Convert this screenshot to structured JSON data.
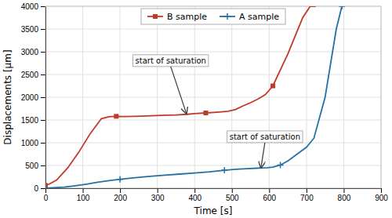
{
  "chart_data": {
    "type": "line",
    "xlabel": "Time [s]",
    "ylabel": "Displacements  [μm]",
    "xlim": [
      0,
      900
    ],
    "ylim": [
      0,
      4000
    ],
    "xticks": [
      0,
      100,
      200,
      300,
      400,
      500,
      600,
      700,
      800,
      900
    ],
    "yticks": [
      0,
      500,
      1000,
      1500,
      2000,
      2500,
      3000,
      3500,
      4000
    ],
    "grid": true,
    "legend": "top",
    "series": [
      {
        "name": "B sample",
        "color": "#c0392b",
        "marker": "square",
        "x": [
          0,
          10,
          30,
          60,
          90,
          120,
          150,
          170,
          190,
          210,
          240,
          270,
          310,
          350,
          380,
          400,
          430,
          460,
          490,
          510,
          530,
          550,
          570,
          590,
          610,
          630,
          650,
          670,
          690,
          710,
          725
        ],
        "values": [
          60,
          90,
          180,
          450,
          800,
          1200,
          1530,
          1570,
          1580,
          1575,
          1580,
          1590,
          1600,
          1610,
          1625,
          1640,
          1655,
          1670,
          1690,
          1730,
          1810,
          1880,
          1960,
          2060,
          2250,
          2600,
          2950,
          3350,
          3750,
          4000,
          4000
        ]
      },
      {
        "name": "A sample",
        "color": "#2471a3",
        "marker": "plus",
        "x": [
          0,
          20,
          50,
          80,
          110,
          140,
          170,
          200,
          240,
          280,
          320,
          360,
          400,
          440,
          480,
          510,
          540,
          565,
          580,
          595,
          610,
          630,
          650,
          675,
          700,
          720,
          750,
          780,
          795
        ],
        "values": [
          0,
          10,
          25,
          55,
          90,
          130,
          165,
          195,
          230,
          260,
          285,
          310,
          335,
          360,
          395,
          415,
          430,
          440,
          445,
          450,
          465,
          510,
          600,
          750,
          900,
          1100,
          2000,
          3500,
          4000
        ]
      }
    ],
    "annotations": [
      {
        "text": "start of saturation",
        "x": 378,
        "y": 1640
      },
      {
        "text": "start of saturation",
        "x": 578,
        "y": 450
      }
    ]
  }
}
